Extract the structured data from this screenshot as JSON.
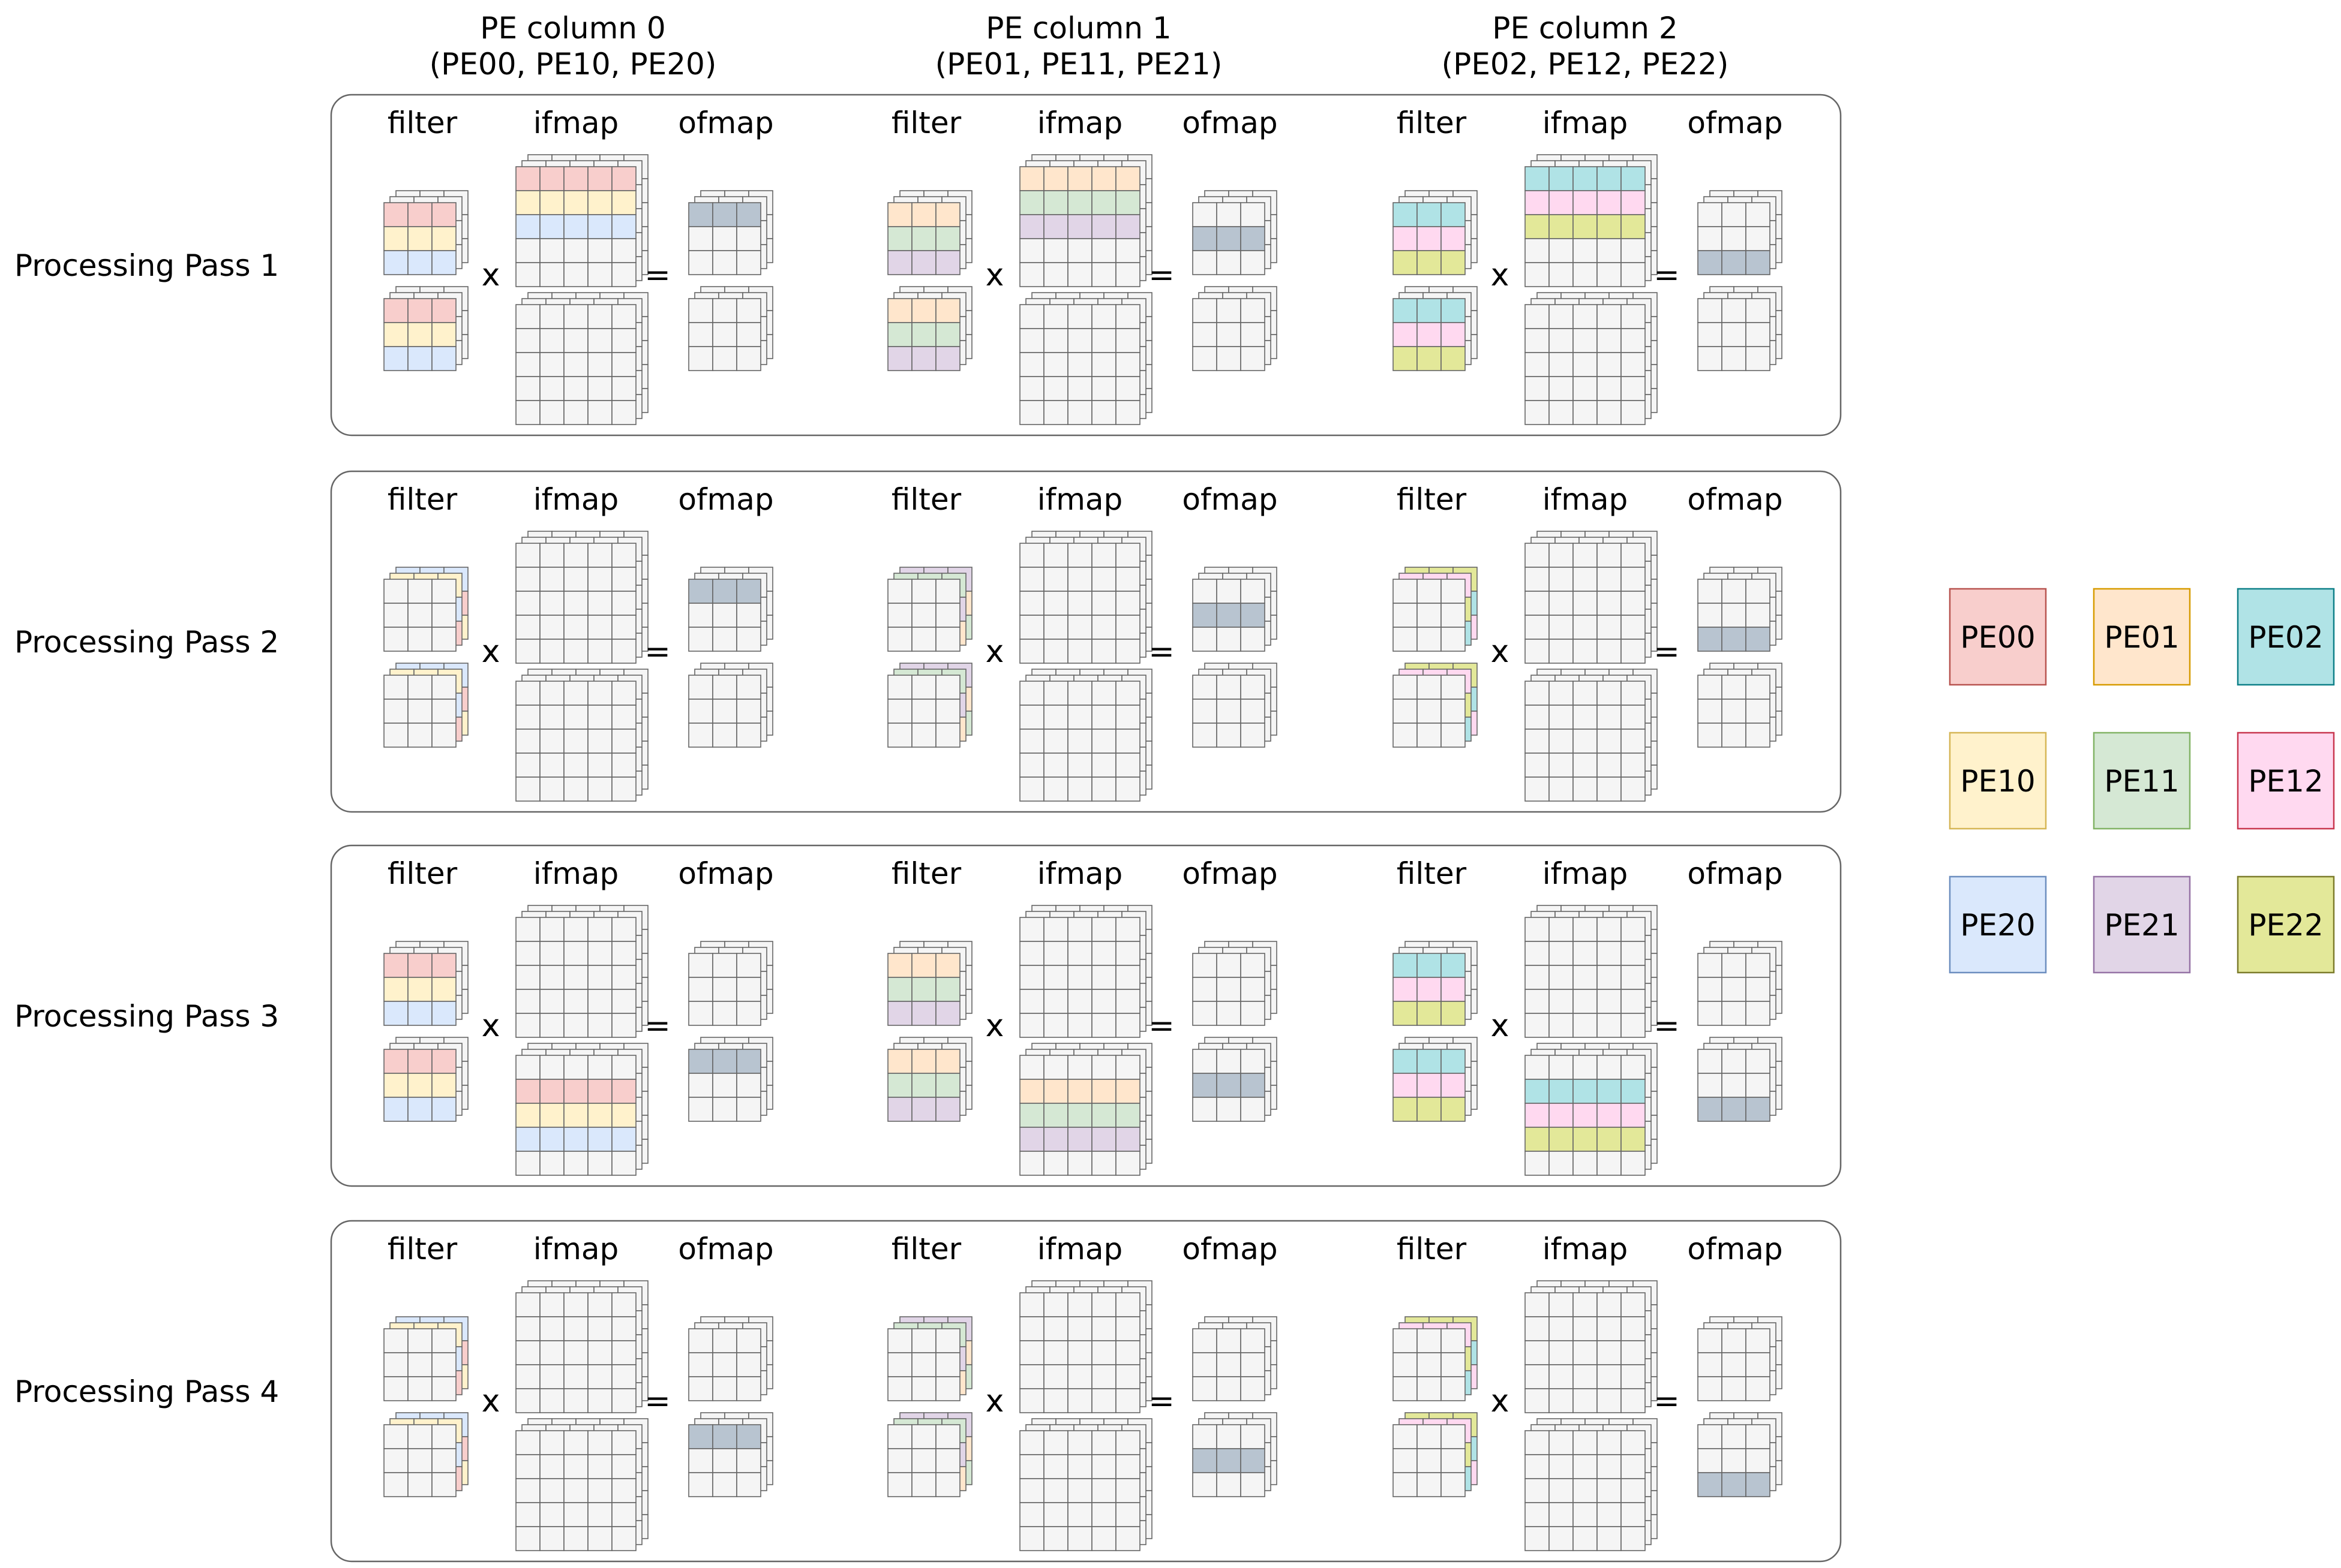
{
  "columns": [
    {
      "title": "PE column 0",
      "subtitle": "(PE00, PE10, PE20)"
    },
    {
      "title": "PE column 1",
      "subtitle": "(PE01, PE11, PE21)"
    },
    {
      "title": "PE column 2",
      "subtitle": "(PE02, PE12, PE22)"
    }
  ],
  "passes": [
    {
      "label": "Processing Pass 1"
    },
    {
      "label": "Processing Pass 2"
    },
    {
      "label": "Processing Pass 3"
    },
    {
      "label": "Processing Pass 4"
    }
  ],
  "block_labels": {
    "filter": "filter",
    "ifmap": "ifmap",
    "ofmap": "ofmap"
  },
  "operators": {
    "multiply": "x",
    "equals": "="
  },
  "legend": [
    {
      "label": "PE00",
      "fill": "#f8cecc",
      "stroke": "#b85450"
    },
    {
      "label": "PE01",
      "fill": "#ffe6cc",
      "stroke": "#d79b00"
    },
    {
      "label": "PE02",
      "fill": "#b0e3e6",
      "stroke": "#0e8088"
    },
    {
      "label": "PE10",
      "fill": "#fff2cc",
      "stroke": "#d6b656"
    },
    {
      "label": "PE11",
      "fill": "#d5e8d4",
      "stroke": "#82b366"
    },
    {
      "label": "PE12",
      "fill": "#ffd9f0",
      "stroke": "#c8374f"
    },
    {
      "label": "PE20",
      "fill": "#dae8fc",
      "stroke": "#6c8ebf"
    },
    {
      "label": "PE21",
      "fill": "#e1d5e7",
      "stroke": "#9673a6"
    },
    {
      "label": "PE22",
      "fill": "#e3e899",
      "stroke": "#7c7c2c"
    }
  ],
  "colors": {
    "grid_fill": "#f5f5f5",
    "grid_line": "#666666",
    "output_row": "#b8c4d0",
    "panel_stroke": "#666666"
  }
}
